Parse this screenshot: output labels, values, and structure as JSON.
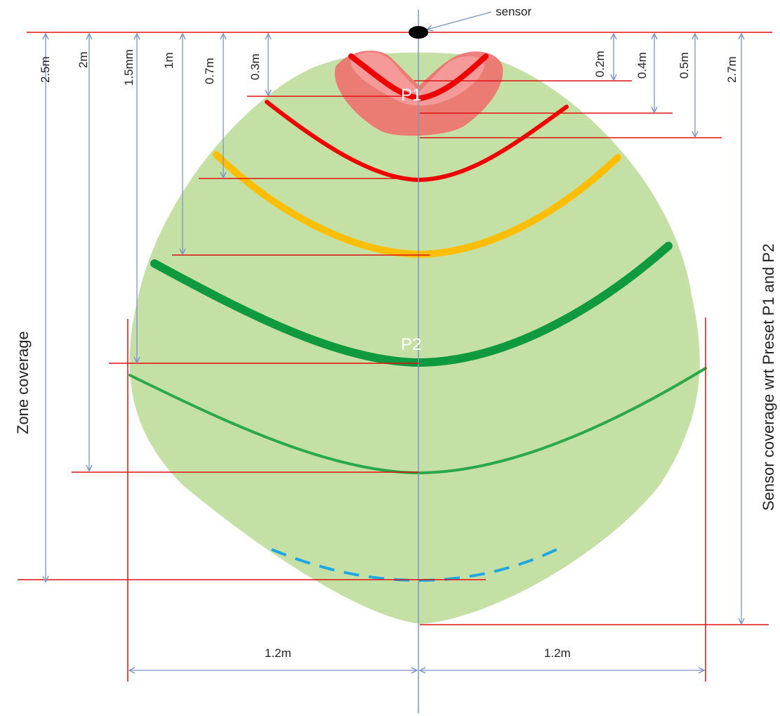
{
  "sensor_label": "sensor",
  "presets": {
    "p1": "P1",
    "p2": "P2"
  },
  "zone_label": "Zone coverage",
  "sensor_coverage_label": "Sensor coverage wrt Preset P1 and P2",
  "left_distances": [
    "2.5m",
    "2m",
    "1.5mm",
    "1m",
    "0.7m",
    "0.3m"
  ],
  "right_distances": [
    "0.2m",
    "0.4m",
    "0.5m",
    "2.7m"
  ],
  "width_labels": [
    "1.2m",
    "1.2m"
  ],
  "colors": {
    "zone_fill": "#c5e0a5",
    "p1_fill": "#f06a6a",
    "p1_inner": "#f8a0a0",
    "red_line": "#ee0000",
    "orange_line": "#ffbf00",
    "green_thick": "#109a40",
    "green_thin": "#2aa84a",
    "dashed": "#22a8e0",
    "dimension_arrow": "#7a95c4",
    "guide_red": "#e01010"
  }
}
